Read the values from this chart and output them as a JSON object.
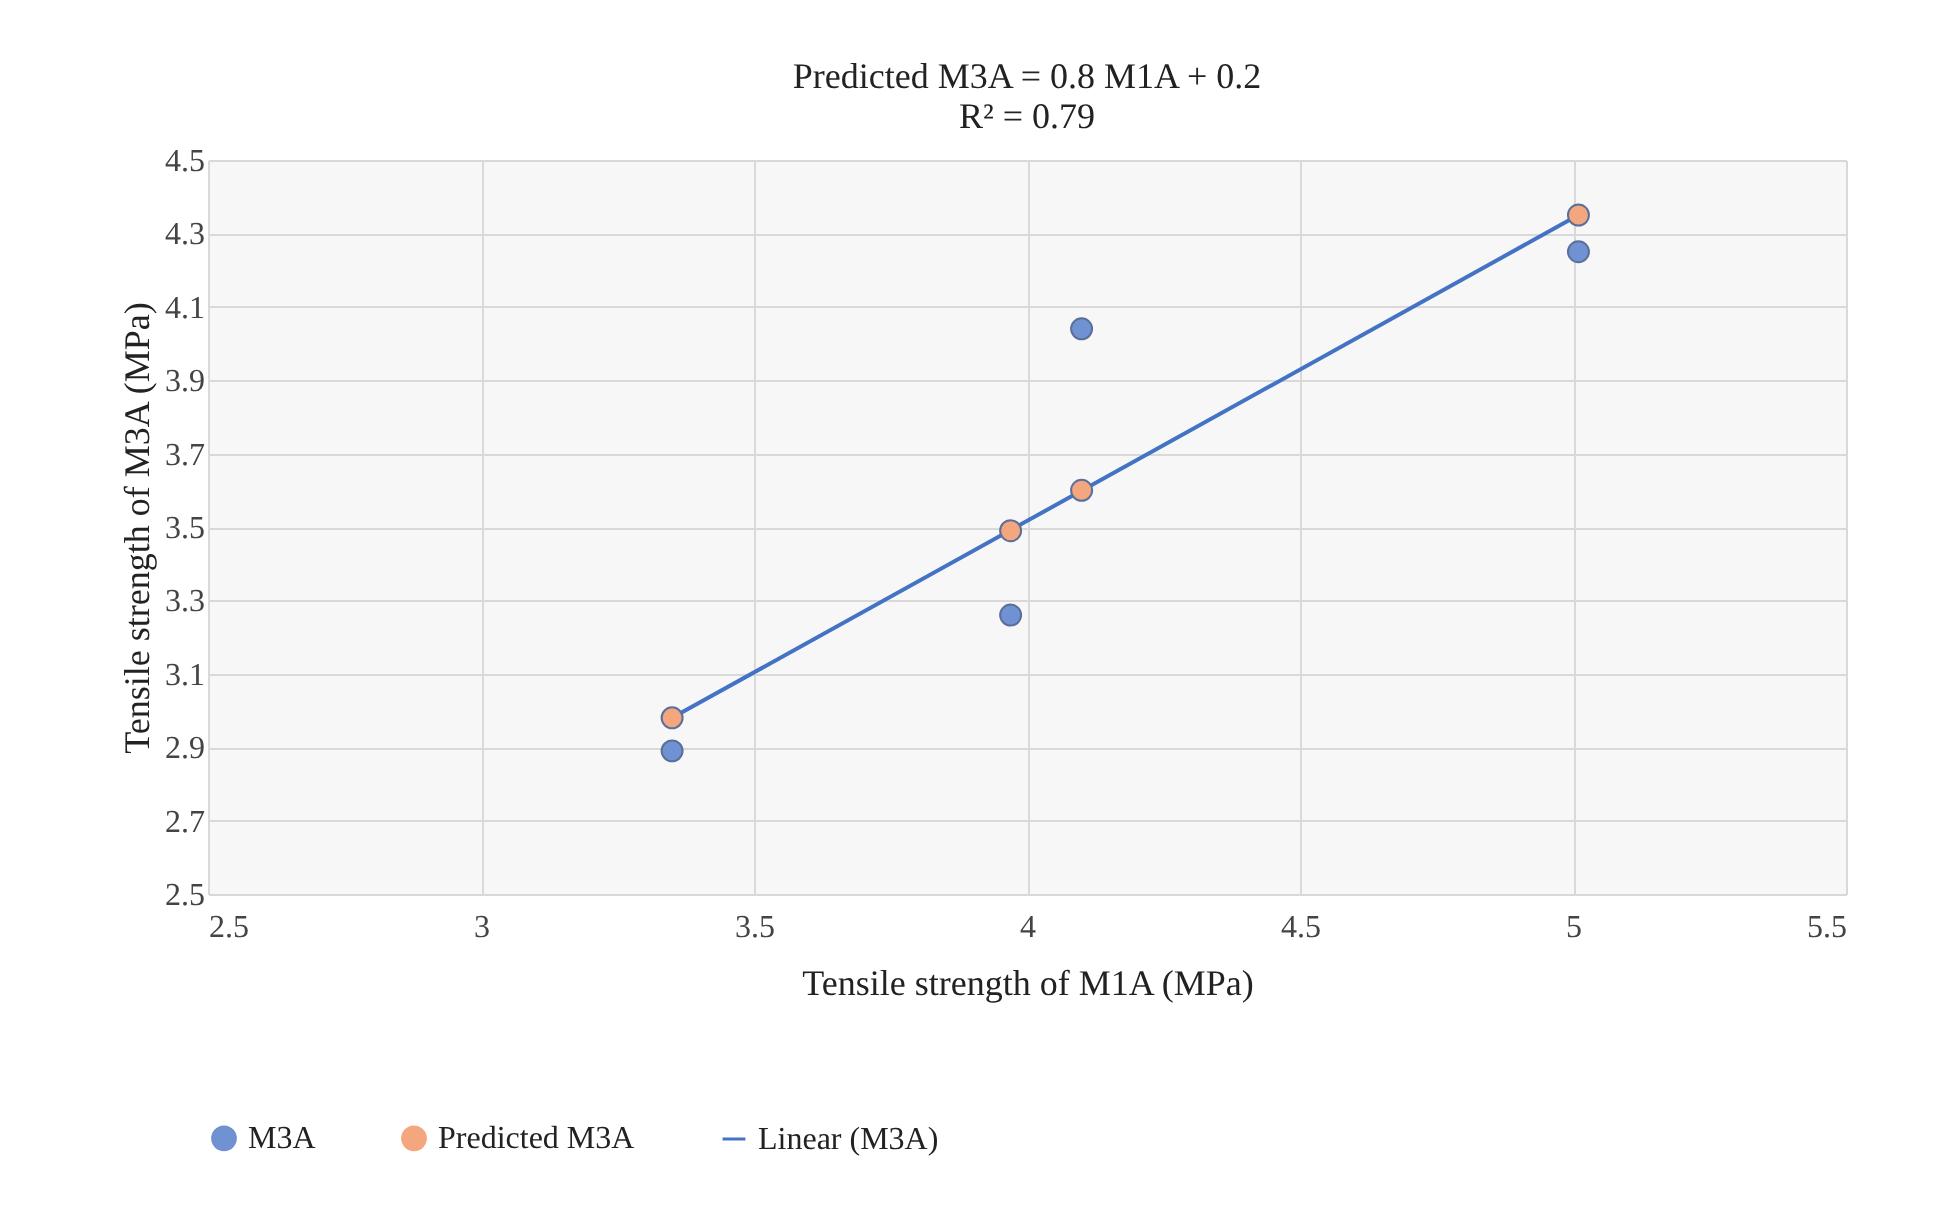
{
  "chart_data": {
    "type": "scatter",
    "title": "Predicted M3A = 0.8 M1A + 0.2",
    "subtitle": "R² = 0.79",
    "xlabel": "Tensile strength of M1A (MPa)",
    "ylabel": "Tensile strength of M3A (MPa)",
    "xlim": [
      2.5,
      5.5
    ],
    "xticks": [
      2.5,
      3,
      3.5,
      4,
      4.5,
      5,
      5.5
    ],
    "ylim": [
      2.5,
      4.5
    ],
    "yticks": [
      2.5,
      2.7,
      2.9,
      3.1,
      3.3,
      3.5,
      3.7,
      3.9,
      4.1,
      4.3,
      4.5
    ],
    "grid": true,
    "legend": "bottom",
    "series": [
      {
        "name": "M3A",
        "color": "#7092d2",
        "marker": "circle",
        "x": [
          3.35,
          3.97,
          4.1,
          5.01
        ],
        "values": [
          2.89,
          3.26,
          4.04,
          4.25
        ]
      },
      {
        "name": "Predicted M3A",
        "color": "#f4a77e",
        "marker": "circle",
        "x": [
          3.35,
          3.97,
          4.1,
          5.01
        ],
        "values": [
          2.98,
          3.49,
          3.6,
          4.35
        ]
      },
      {
        "name": "Linear (M3A)",
        "type": "line",
        "line_style": "solid",
        "color": "#4472c4",
        "x": [
          3.35,
          5.01
        ],
        "values": [
          2.98,
          4.35
        ]
      }
    ]
  }
}
